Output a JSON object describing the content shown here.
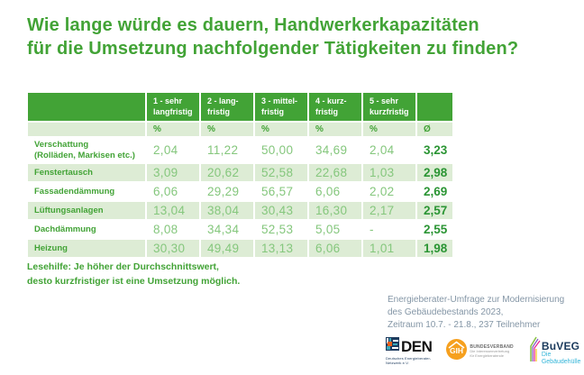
{
  "page": {
    "title": "Wie lange würde es dauern, Handwerkerkapazitäten\nfür die Umsetzung nachfolgender Tätigkeiten zu finden?",
    "lesehilfe": "Lesehilfe: Je höher der Durchschnittswert,\ndesto kurzfristiger ist eine Umsetzung möglich.",
    "attribution": "Energieberater-Umfrage zur Modernisierung\ndes Gebäudebestands 2023,\nZeitraum 10.7. - 21.8., 237 Teilnehmer"
  },
  "chart_data": {
    "type": "table",
    "title": "Wie lange würde es dauern, Handwerkerkapazitäten für die Umsetzung nachfolgender Tätigkeiten zu finden?",
    "columns": [
      "1 - sehr\nlangfristig",
      "2 - lang-\nfristig",
      "3 - mittel-\nfristig",
      "4 - kurz-\nfristig",
      "5 - sehr\nkurzfristig"
    ],
    "unit_label": "%",
    "avg_header": "Ø",
    "rows": [
      {
        "label": "Verschattung\n(Rolläden, Markisen etc.)",
        "values": [
          "2,04",
          "11,22",
          "50,00",
          "34,69",
          "2,04"
        ],
        "avg": "3,23"
      },
      {
        "label": "Fenstertausch",
        "values": [
          "3,09",
          "20,62",
          "52,58",
          "22,68",
          "1,03"
        ],
        "avg": "2,98"
      },
      {
        "label": "Fassadendämmung",
        "values": [
          "6,06",
          "29,29",
          "56,57",
          "6,06",
          "2,02"
        ],
        "avg": "2,69"
      },
      {
        "label": "Lüftungsanlagen",
        "values": [
          "13,04",
          "38,04",
          "30,43",
          "16,30",
          "2,17"
        ],
        "avg": "2,57"
      },
      {
        "label": "Dachdämmung",
        "values": [
          "8,08",
          "34,34",
          "52,53",
          "5,05",
          "-"
        ],
        "avg": "2,55"
      },
      {
        "label": "Heizung",
        "values": [
          "30,30",
          "49,49",
          "13,13",
          "6,06",
          "1,01"
        ],
        "avg": "1,98"
      }
    ]
  },
  "logos": {
    "den": {
      "abbr": "DEN",
      "subtext": "Deutsches Energieberater-Netzwerk e.V."
    },
    "gih": {
      "abbr": "GIH",
      "org": "BUNDESVERBAND",
      "tagline": "Die Interessenvertretung\nfür Energieberatende"
    },
    "buveg": {
      "abbr": "BuVEG",
      "tagline": "Die Gebäudehülle"
    }
  },
  "colors": {
    "green": "#42a336",
    "light": "#ddecd5",
    "val": "#85c77d",
    "avg": "#2b9534",
    "footer": "#8496a6"
  }
}
